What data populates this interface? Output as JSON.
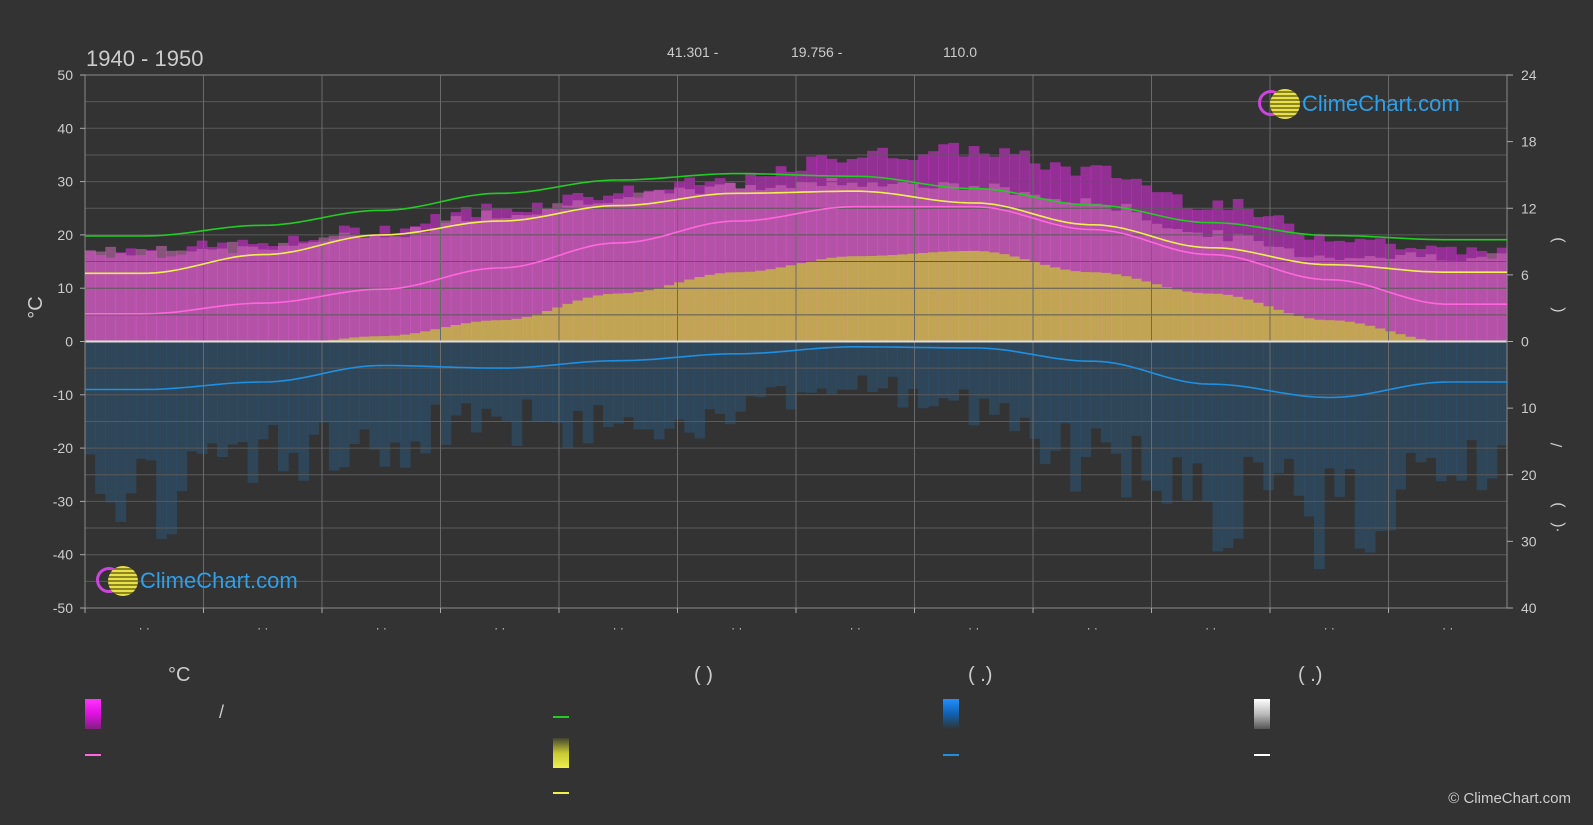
{
  "header": {
    "title": "1940 - 1950",
    "lat": "41.301 -",
    "lon": "19.756 -",
    "elevation": "110.0"
  },
  "watermark": "ClimeChart.com",
  "copyright": "© ClimeChart.com",
  "legend": {
    "col1_header": "°C",
    "col1_slash": "/",
    "col2_header": "(          )",
    "col3_header": "(    .)",
    "col4_header": "(    .)"
  },
  "colors": {
    "background": "#333333",
    "daylight": "#22cc22",
    "sunshine": "#f0f050",
    "avg_temp": "#ff66dd",
    "precip": "#1f8fe0",
    "temp_band": "#e22ee2",
    "sun_band": "#c8c832",
    "snow": "#ffffff"
  },
  "chart_data": {
    "type": "area",
    "left_axis": {
      "label": "°C",
      "ylim": [
        -50,
        50
      ],
      "ticks": [
        50,
        40,
        30,
        20,
        10,
        0,
        -10,
        -20,
        -30,
        -40,
        -50
      ]
    },
    "right_axis_top": {
      "ylim": [
        0,
        24
      ],
      "ticks": [
        24,
        18,
        12,
        6,
        0
      ]
    },
    "right_axis_bottom": {
      "ylim": [
        0,
        40
      ],
      "ticks": [
        0,
        10,
        20,
        30,
        40
      ]
    },
    "right_axis_marks": [
      ")",
      "(",
      "/",
      ")",
      "(",
      "·"
    ],
    "month_tick_labels": [
      "· ·",
      "· ·",
      "· ·",
      "· ·",
      "· ·",
      "· ·",
      "· ·",
      "· ·",
      "· ·",
      "· ·",
      "· ·",
      "· ·"
    ],
    "x_months": [
      0.5,
      1.5,
      2.5,
      3.5,
      4.5,
      5.5,
      6.5,
      7.5,
      8.5,
      9.5,
      10.5,
      11.5
    ],
    "series": [
      {
        "key": "daylight",
        "values_temp_scale": [
          19.8,
          21.8,
          24.6,
          27.8,
          30.3,
          31.5,
          31.0,
          28.7,
          25.6,
          22.3,
          19.9,
          19.1
        ]
      },
      {
        "key": "sunshine",
        "values_temp_scale": [
          12.8,
          16.3,
          20.0,
          22.6,
          25.5,
          27.8,
          28.2,
          26.0,
          21.9,
          17.6,
          14.4,
          13.0
        ]
      },
      {
        "key": "avg_temp",
        "values_temp_scale": [
          5.2,
          7.2,
          9.8,
          13.8,
          18.5,
          22.6,
          25.3,
          25.3,
          21.0,
          16.3,
          11.6,
          7.0
        ]
      },
      {
        "key": "precip",
        "values_temp_scale": [
          -9.0,
          -7.6,
          -4.5,
          -5.0,
          -3.6,
          -2.3,
          -1.0,
          -1.2,
          -3.7,
          -8.0,
          -10.5,
          -7.6
        ]
      }
    ],
    "band_top": [
      17,
      18,
      21,
      25,
      28,
      30,
      35,
      36,
      32,
      26,
      20,
      17
    ],
    "band_low": [
      -2,
      -1,
      1,
      4,
      9,
      13,
      16,
      17,
      13,
      9,
      4,
      0
    ],
    "sun_band_top": [
      17,
      18,
      20,
      24,
      27,
      29,
      30,
      29,
      26,
      20,
      16,
      16
    ],
    "precip_bars_depth": [
      -38,
      -30,
      -24,
      -22,
      -20,
      -18,
      -12,
      -16,
      -30,
      -42,
      -44,
      -36
    ]
  }
}
